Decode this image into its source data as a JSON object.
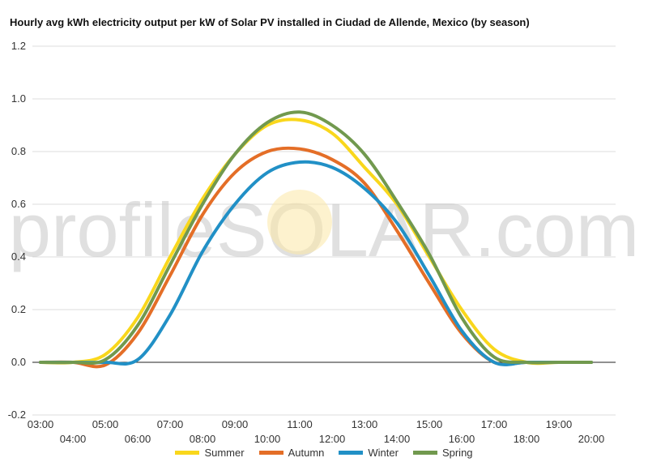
{
  "chart_data": {
    "type": "line",
    "title": "Hourly avg kWh electricity output per kW of Solar PV installed in Ciudad de Allende, Mexico (by season)",
    "watermark": "profileSOLAR.com",
    "ylim": [
      -0.2,
      1.2
    ],
    "yticks": [
      "-0.2",
      "0.0",
      "0.2",
      "0.4",
      "0.6",
      "0.8",
      "1.0",
      "1.2"
    ],
    "xticks_top": [
      "03:00",
      "05:00",
      "07:00",
      "09:00",
      "11:00",
      "13:00",
      "15:00",
      "17:00",
      "19:00"
    ],
    "xticks_bottom": [
      "04:00",
      "06:00",
      "08:00",
      "10:00",
      "12:00",
      "14:00",
      "16:00",
      "18:00",
      "20:00"
    ],
    "x": [
      3,
      4,
      5,
      6,
      7,
      8,
      9,
      10,
      11,
      12,
      13,
      14,
      15,
      16,
      17,
      18,
      19,
      20
    ],
    "legend_position": "bottom",
    "series": [
      {
        "name": "Summer",
        "color": "#f9d71c",
        "values": [
          0.0,
          0.0,
          0.03,
          0.17,
          0.4,
          0.62,
          0.79,
          0.9,
          0.92,
          0.87,
          0.74,
          0.6,
          0.4,
          0.2,
          0.05,
          0.0,
          0.0,
          0.0
        ]
      },
      {
        "name": "Autumn",
        "color": "#e46e27",
        "values": [
          0.0,
          0.0,
          -0.01,
          0.11,
          0.33,
          0.56,
          0.72,
          0.8,
          0.81,
          0.77,
          0.68,
          0.5,
          0.3,
          0.11,
          0.0,
          0.0,
          0.0,
          0.0
        ]
      },
      {
        "name": "Winter",
        "color": "#2190c6",
        "values": [
          0.0,
          0.0,
          0.0,
          0.01,
          0.18,
          0.42,
          0.6,
          0.72,
          0.76,
          0.74,
          0.66,
          0.53,
          0.33,
          0.12,
          0.0,
          0.0,
          0.0,
          0.0
        ]
      },
      {
        "name": "Spring",
        "color": "#71994e",
        "values": [
          0.0,
          0.0,
          0.01,
          0.14,
          0.37,
          0.6,
          0.79,
          0.91,
          0.95,
          0.9,
          0.79,
          0.61,
          0.41,
          0.17,
          0.02,
          0.0,
          0.0,
          0.0
        ]
      }
    ]
  }
}
